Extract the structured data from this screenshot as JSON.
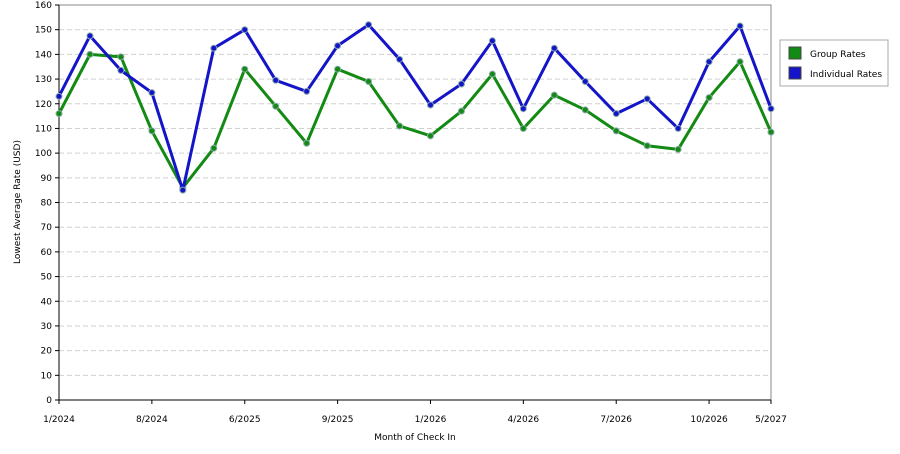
{
  "chart_data": {
    "type": "line",
    "xlabel": "Month of Check In",
    "ylabel": "Lowest Average Rate (USD)",
    "categories": [
      "1/2024",
      null,
      null,
      "8/2024",
      null,
      null,
      "6/2025",
      null,
      null,
      "9/2025",
      null,
      null,
      "1/2026",
      null,
      null,
      "4/2026",
      null,
      null,
      "7/2026",
      null,
      null,
      "10/2026",
      null,
      "5/2027"
    ],
    "series": [
      {
        "name": "Group Rates",
        "color": "#138a13",
        "values": [
          116,
          140,
          139,
          109,
          86,
          102,
          134,
          119,
          104,
          134,
          129,
          111,
          107,
          117,
          132,
          110,
          123.5,
          117.5,
          109,
          103,
          101.5,
          122.5,
          137,
          108.5
        ]
      },
      {
        "name": "Individual Rates",
        "color": "#1414c8",
        "values": [
          123,
          147.5,
          133.5,
          124.5,
          85,
          142.5,
          150,
          129.5,
          125,
          143.5,
          152,
          138,
          119.5,
          128,
          145.5,
          118,
          142.5,
          129,
          116,
          122,
          110,
          137,
          151.5,
          118
        ]
      }
    ],
    "ylim": [
      0,
      160
    ],
    "yticks": [
      0,
      10,
      20,
      30,
      40,
      50,
      60,
      70,
      80,
      90,
      100,
      110,
      120,
      130,
      140,
      150,
      160
    ],
    "grid": true,
    "legend": "right"
  }
}
